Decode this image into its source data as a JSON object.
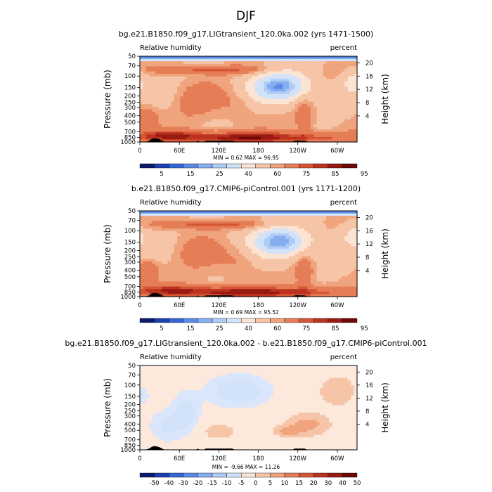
{
  "season": "DJF",
  "colors": {
    "rh": [
      "#0b1a6e",
      "#1c3fb0",
      "#3467d6",
      "#5a8be6",
      "#84aeef",
      "#aecbf5",
      "#d2e3f9",
      "#fbe4d3",
      "#f6c5a8",
      "#f0a47d",
      "#e57d56",
      "#d65535",
      "#bc3320",
      "#991a12",
      "#6e0808"
    ],
    "diff": [
      "#0b1a6e",
      "#1c3fb0",
      "#3467d6",
      "#5a8be6",
      "#84aeef",
      "#aecbf5",
      "#d2e3f9",
      "#fbe4d3",
      "#f6c5a8",
      "#f0a47d",
      "#e57d56",
      "#d65535",
      "#bc3320",
      "#991a12",
      "#6e0808"
    ],
    "land": "#000000"
  },
  "panels": [
    {
      "title": "bg.e21.B1850.f09_g17.LIGtransient_120.0ka.002 (yrs 1471-1500)",
      "left_label": "Relative humidity",
      "right_label": "percent",
      "minmax": "MIN =     0.62   MAX =    96.95"
    },
    {
      "title": "b.e21.B1850.f09_g17.CMIP6-piControl.001 (yrs 1171-1200)",
      "left_label": "Relative humidity",
      "right_label": "percent",
      "minmax": "MIN =     0.69   MAX =    95.52"
    },
    {
      "title": "bg.e21.B1850.f09_g17.LIGtransient_120.0ka.002 - b.e21.B1850.f09_g17.CMIP6-piControl.001",
      "left_label": "Relative humidity",
      "right_label": "percent",
      "minmax": "MIN =    -9.66   MAX =    11.26"
    }
  ],
  "chart_data": {
    "type": "heatmap",
    "xlabel": "",
    "ylabel": "Pressure (mb)",
    "y2label": "Height (km)",
    "x_ticks": [
      "0",
      "60E",
      "120E",
      "180",
      "120W",
      "60W"
    ],
    "x_tick_lon": [
      0,
      60,
      120,
      180,
      240,
      300
    ],
    "xlim": [
      0,
      330
    ],
    "y_ticks": [
      "50",
      "70",
      "100",
      "150",
      "200",
      "250",
      "300",
      "400",
      "500",
      "700",
      "850",
      "1000"
    ],
    "y_tick_p": [
      50,
      70,
      100,
      150,
      200,
      250,
      300,
      400,
      500,
      700,
      850,
      1000
    ],
    "ylim": [
      1000,
      10
    ],
    "y2_ticks": [
      "20",
      "16",
      "12",
      "8",
      "4"
    ],
    "y2_tick_km": [
      20,
      16,
      12,
      8,
      4
    ],
    "colorbar_rh": [
      "5",
      "15",
      "25",
      "40",
      "60",
      "75",
      "85",
      "95"
    ],
    "colorbar_diff": [
      "-50",
      "-40",
      "-30",
      "-20",
      "-15",
      "-10",
      "-5",
      "0",
      "5",
      "10",
      "15",
      "20",
      "30",
      "40",
      "50"
    ]
  }
}
